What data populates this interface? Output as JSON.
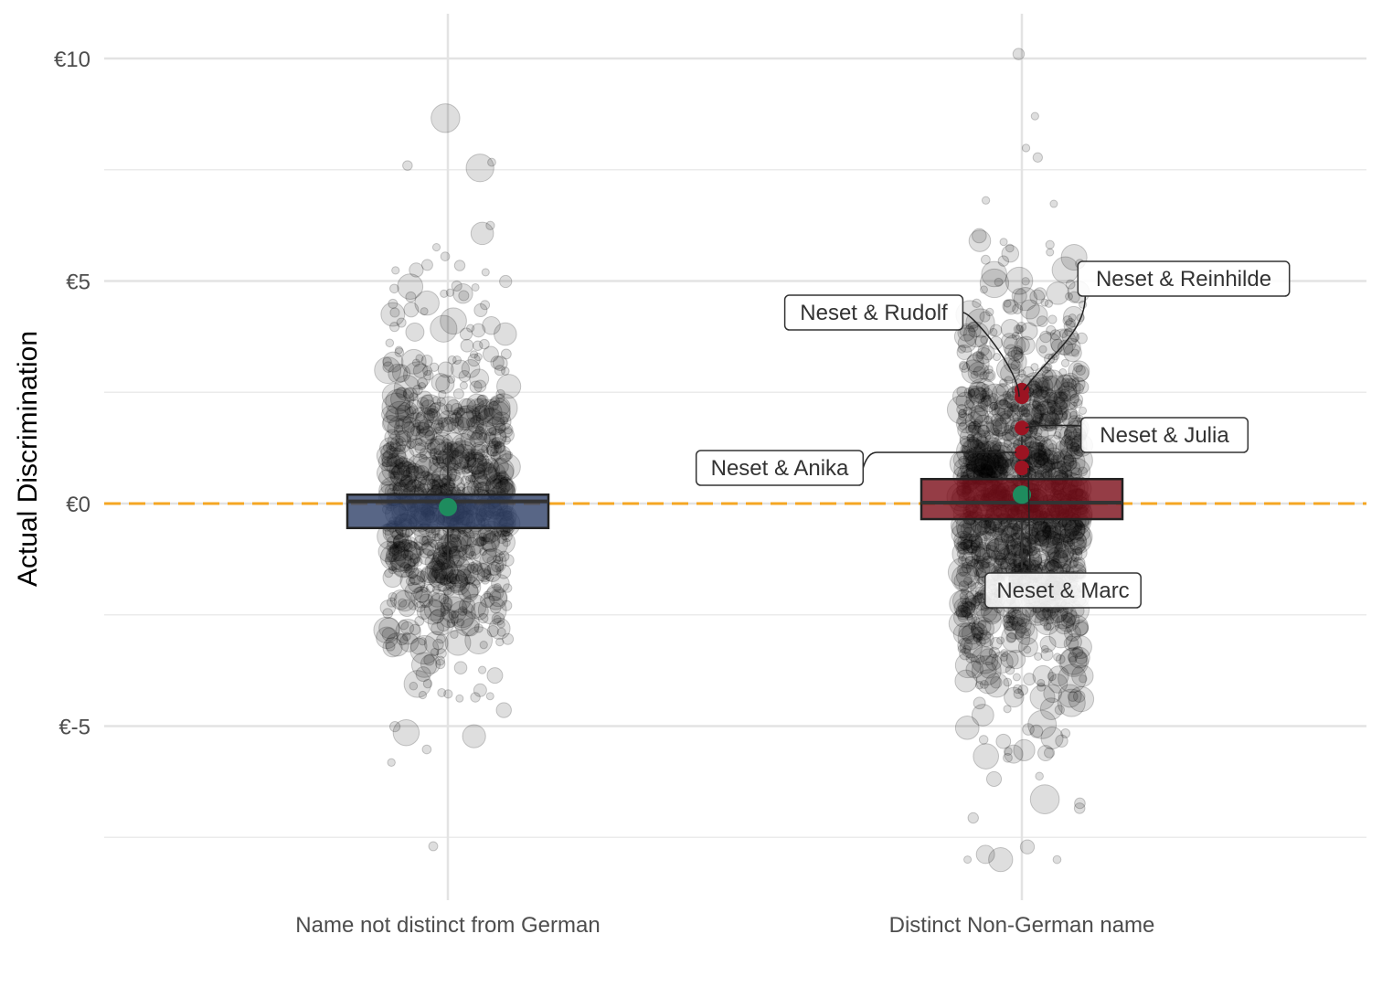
{
  "chart_data": {
    "type": "boxplot-jitter",
    "title": "",
    "xlabel": "",
    "ylabel": "Actual Discrimination",
    "ylim": [
      -8.8,
      11
    ],
    "y_ticks": [
      {
        "value": -5,
        "label": "€-5"
      },
      {
        "value": 0,
        "label": "€0"
      },
      {
        "value": 5,
        "label": "€5"
      },
      {
        "value": 10,
        "label": "€10"
      }
    ],
    "y_minor_gridlines": [
      -7.5,
      -2.5,
      2.5,
      7.5
    ],
    "reference_line": {
      "value": 0,
      "style": "dashed",
      "color": "#F5A623"
    },
    "grid": true,
    "legend": "none",
    "categories": [
      {
        "label": "Name not distinct from German",
        "color": "#2E4068",
        "box": {
          "q1": -0.55,
          "median": 0.05,
          "q3": 0.2,
          "whisker_low": -1.4,
          "whisker_high": 1.35
        },
        "mean": -0.08,
        "n_points": 900,
        "points_sd": 1.8,
        "points_range": [
          -7.7,
          10.0
        ]
      },
      {
        "label": "Distinct Non-German name",
        "color": "#7A0D18",
        "box": {
          "q1": -0.35,
          "median": 0.02,
          "q3": 0.55,
          "whisker_low": -1.45,
          "whisker_high": 1.5
        },
        "mean": 0.2,
        "n_points": 1400,
        "points_sd": 2.0,
        "points_range": [
          -8.0,
          10.1
        ]
      }
    ],
    "highlighted_points": [
      {
        "name": "Neset & Reinhilde",
        "category": 1,
        "y": 2.55
      },
      {
        "name": "Neset & Rudolf",
        "category": 1,
        "y": 2.4
      },
      {
        "name": "Neset & Julia",
        "category": 1,
        "y": 1.7
      },
      {
        "name": "Neset & Anika",
        "category": 1,
        "y": 1.15
      },
      {
        "name": "Neset & Marc",
        "category": 1,
        "y": 0.8
      }
    ],
    "highlight_color": "#9B1422",
    "mean_marker_color": "#1E8C5E"
  }
}
